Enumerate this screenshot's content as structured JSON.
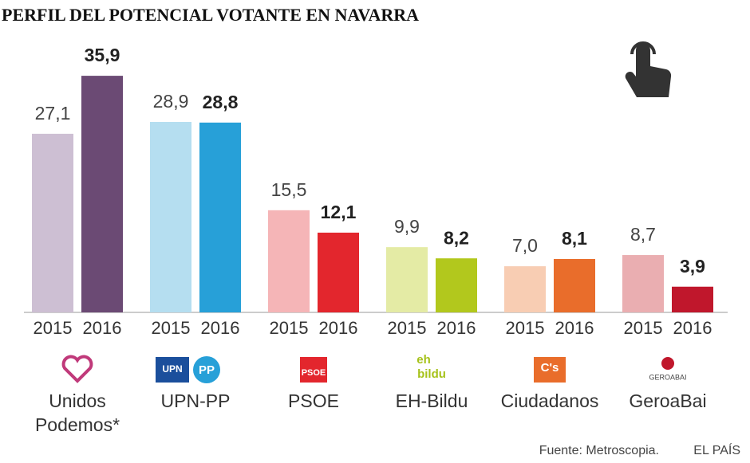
{
  "chart_data": {
    "type": "bar",
    "title": "PERFIL DEL POTENCIAL VOTANTE EN NAVARRA",
    "categories": [
      "Unidos Podemos*",
      "UPN-PP",
      "PSOE",
      "EH-Bildu",
      "Ciudadanos",
      "GeroaBai"
    ],
    "logos": [
      [],
      [
        "UPN",
        "PP"
      ],
      [
        "PSOE"
      ],
      [
        "eh",
        "bildu"
      ],
      [
        "C's"
      ],
      [
        "GEROABAI"
      ]
    ],
    "series": [
      {
        "name": "2015",
        "colors": [
          "#cdbfd3",
          "#b5def0",
          "#f5b5b7",
          "#e4eba5",
          "#f8cdb3",
          "#eaaeb1"
        ],
        "values": [
          27.1,
          28.9,
          15.5,
          9.9,
          7.0,
          8.7
        ],
        "value_labels": [
          "27,1",
          "28,9",
          "15,5",
          "9,9",
          "7,0",
          "8,7"
        ]
      },
      {
        "name": "2016",
        "colors": [
          "#6b4a74",
          "#27a0d8",
          "#e3262d",
          "#b2c81d",
          "#e96d2b",
          "#c0172c"
        ],
        "values": [
          35.9,
          28.8,
          12.1,
          8.2,
          8.1,
          3.9
        ],
        "value_labels": [
          "35,9",
          "28,8",
          "12,1",
          "8,2",
          "8,1",
          "3,9"
        ]
      }
    ],
    "source": "Fuente: Metroscopia.",
    "credit": "EL PAÍS"
  }
}
